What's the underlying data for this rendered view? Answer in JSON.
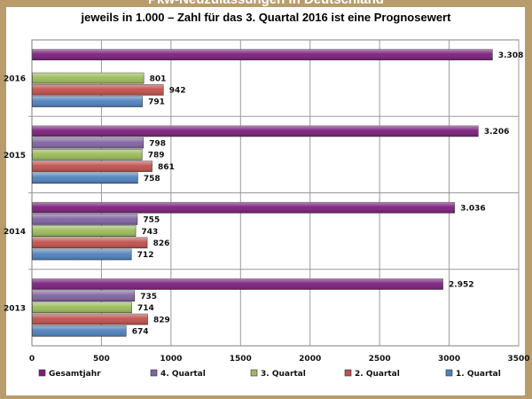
{
  "chart_data": {
    "type": "bar",
    "orientation": "horizontal",
    "title": "Pkw-Neuzulassungen in Deutschland",
    "subtitle": "jeweils in 1.000 – Zahl für das 3. Quartal 2016 ist eine Prognosewert",
    "categories": [
      "2016",
      "2015",
      "2014",
      "2013"
    ],
    "series": [
      {
        "name": "Gesamtjahr",
        "color": "#7b1f7c",
        "values": [
          3308,
          3206,
          3036,
          2952
        ],
        "labels": [
          "3.308",
          "3.206",
          "3.036",
          "2.952"
        ]
      },
      {
        "name": "4. Quartal",
        "color": "#8064a2",
        "values": [
          null,
          798,
          755,
          735
        ],
        "labels": [
          "",
          "798",
          "755",
          "735"
        ]
      },
      {
        "name": "3. Quartal",
        "color": "#9bbb59",
        "values": [
          801,
          789,
          743,
          714
        ],
        "labels": [
          "801",
          "789",
          "743",
          "714"
        ]
      },
      {
        "name": "2. Quartal",
        "color": "#c0504d",
        "values": [
          942,
          861,
          826,
          829
        ],
        "labels": [
          "942",
          "861",
          "826",
          "829"
        ]
      },
      {
        "name": "1. Quartal",
        "color": "#4f81bd",
        "values": [
          791,
          758,
          712,
          674
        ],
        "labels": [
          "791",
          "758",
          "712",
          "674"
        ]
      }
    ],
    "xlim": [
      0,
      3500
    ],
    "xticks": [
      0,
      500,
      1000,
      1500,
      2000,
      2500,
      3000,
      3500
    ],
    "xtick_labels": [
      "0",
      "500",
      "1000",
      "1500",
      "2000",
      "2500",
      "3000",
      "3500"
    ],
    "grid": true,
    "legend_position": "bottom"
  }
}
